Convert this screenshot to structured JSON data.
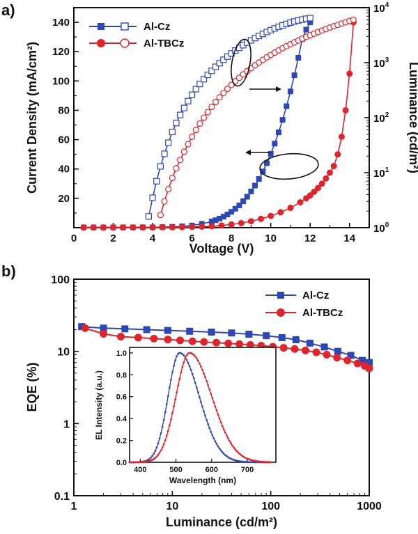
{
  "chart_data": [
    {
      "panel": "a)",
      "type": "line",
      "xlabel": "Voltage (V)",
      "ylabel_left": "Current Density (mA/cm²)",
      "ylabel_right": "Luminance (cd/m²)",
      "xlim": [
        0,
        15
      ],
      "ylim_left": [
        0,
        150
      ],
      "ylim_right": [
        1,
        10000
      ],
      "right_axis_scale": "log",
      "x_ticks": [
        "0",
        "2",
        "4",
        "6",
        "8",
        "10",
        "12",
        "14"
      ],
      "y_left_ticks": [
        "20",
        "40",
        "60",
        "80",
        "100",
        "120",
        "140"
      ],
      "y_right_ticks": [
        {
          "base": "10",
          "exp": "0"
        },
        {
          "base": "10",
          "exp": "1"
        },
        {
          "base": "10",
          "exp": "2"
        },
        {
          "base": "10",
          "exp": "3"
        },
        {
          "base": "10",
          "exp": "4"
        }
      ],
      "legend_position": "top-left",
      "series": [
        {
          "name": "Al-Cz",
          "kind": "current_density",
          "axis": "left",
          "marker": "filled-square",
          "color": "#2c47b8",
          "x": [
            0.5,
            1.0,
            1.5,
            2.0,
            2.5,
            3.0,
            3.5,
            4.0,
            4.5,
            5.0,
            5.5,
            6.0,
            6.5,
            7.0,
            7.2,
            7.4,
            7.6,
            7.8,
            8.0,
            8.2,
            8.4,
            8.6,
            8.8,
            9.0,
            9.2,
            9.4,
            9.6,
            9.8,
            10.0,
            10.2,
            10.4,
            10.6,
            10.8,
            11.0,
            11.2,
            11.4,
            11.6,
            11.8,
            12.0
          ],
          "y": [
            0.2,
            0.2,
            0.2,
            0.2,
            0.2,
            0.2,
            0.3,
            0.3,
            0.4,
            0.6,
            0.9,
            1.5,
            2.6,
            4.2,
            5.1,
            6.2,
            7.5,
            9.0,
            10.8,
            12.9,
            15.2,
            18.0,
            21.1,
            24.7,
            28.7,
            33.2,
            38.3,
            44.0,
            50.3,
            57.3,
            65.0,
            73.5,
            82.8,
            92.9,
            103.9,
            115.8,
            128.6,
            135.0,
            140.0
          ]
        },
        {
          "name": "Al-TBCz",
          "kind": "current_density",
          "axis": "left",
          "marker": "filled-circle",
          "color": "#e0242a",
          "x": [
            0.5,
            1.0,
            1.5,
            2.0,
            2.5,
            3.0,
            3.5,
            4.0,
            4.5,
            5.0,
            5.5,
            6.0,
            6.5,
            7.0,
            7.5,
            8.0,
            8.5,
            9.0,
            9.5,
            10.0,
            10.5,
            11.0,
            11.5,
            11.8,
            12.0,
            12.2,
            12.4,
            12.6,
            12.8,
            13.0,
            13.2,
            13.4,
            13.6,
            13.8,
            14.0,
            14.2
          ],
          "y": [
            0.2,
            0.2,
            0.2,
            0.2,
            0.2,
            0.2,
            0.2,
            0.2,
            0.3,
            0.3,
            0.4,
            0.5,
            0.7,
            1.0,
            1.5,
            2.2,
            3.1,
            4.4,
            6.0,
            8.0,
            10.5,
            13.5,
            17.3,
            20.0,
            22.0,
            24.5,
            27.0,
            30.0,
            33.5,
            37.5,
            42.0,
            50.0,
            62.0,
            80.0,
            105.0,
            140.0
          ]
        },
        {
          "name": "Al-Cz",
          "kind": "luminance",
          "axis": "right",
          "marker": "open-square",
          "color": "#2c47b8",
          "x": [
            3.8,
            4.0,
            4.2,
            4.4,
            4.6,
            4.8,
            5.0,
            5.2,
            5.4,
            5.6,
            5.8,
            6.0,
            6.2,
            6.4,
            6.6,
            6.8,
            7.0,
            7.2,
            7.4,
            7.6,
            7.8,
            8.0,
            8.2,
            8.4,
            8.6,
            8.8,
            9.0,
            9.2,
            9.4,
            9.6,
            9.8,
            10.0,
            10.2,
            10.4,
            10.6,
            10.8,
            11.0,
            11.2,
            11.4,
            11.6,
            11.8,
            12.0
          ],
          "y": [
            1.6,
            3.5,
            7.0,
            13,
            22,
            35,
            55,
            80,
            112,
            150,
            200,
            260,
            330,
            410,
            500,
            600,
            710,
            840,
            980,
            1130,
            1290,
            1470,
            1660,
            1860,
            2080,
            2310,
            2550,
            2800,
            3060,
            3330,
            3610,
            3900,
            4190,
            4480,
            4770,
            5060,
            5340,
            5610,
            5860,
            6090,
            6290,
            6460
          ]
        },
        {
          "name": "Al-TBCz",
          "kind": "luminance",
          "axis": "right",
          "marker": "open-circle",
          "color": "#e0242a",
          "x": [
            4.4,
            4.6,
            4.8,
            5.0,
            5.2,
            5.4,
            5.6,
            5.8,
            6.0,
            6.2,
            6.4,
            6.6,
            6.8,
            7.0,
            7.2,
            7.4,
            7.6,
            7.8,
            8.0,
            8.2,
            8.4,
            8.6,
            8.8,
            9.0,
            9.2,
            9.4,
            9.6,
            9.8,
            10.0,
            10.2,
            10.4,
            10.6,
            10.8,
            11.0,
            11.2,
            11.4,
            11.6,
            11.8,
            12.0,
            12.2,
            12.4,
            12.6,
            12.8,
            13.0,
            13.2,
            13.4,
            13.6,
            13.8,
            14.0,
            14.2
          ],
          "y": [
            1.7,
            3.0,
            5.0,
            8.0,
            12,
            17,
            24,
            33,
            45,
            60,
            78,
            100,
            126,
            157,
            193,
            234,
            281,
            334,
            394,
            460,
            533,
            613,
            700,
            795,
            897,
            1007,
            1125,
            1250,
            1383,
            1524,
            1673,
            1830,
            1995,
            2168,
            2349,
            2538,
            2735,
            2940,
            3153,
            3374,
            3603,
            3840,
            4085,
            4338,
            4599,
            4868,
            5145,
            5430,
            5723,
            6024
          ]
        }
      ],
      "annotations": [
        {
          "kind": "ellipse-with-arrow",
          "direction": "right",
          "points_to": "right-axis"
        },
        {
          "kind": "ellipse-with-arrow",
          "direction": "left",
          "points_to": "left-axis"
        }
      ]
    },
    {
      "panel": "b)",
      "type": "line",
      "xlabel": "Luminance (cd/m²)",
      "ylabel": "EQE (%)",
      "x_scale": "log",
      "y_scale": "log",
      "xlim": [
        1,
        1000
      ],
      "ylim": [
        0.1,
        100
      ],
      "x_ticks": [
        "1",
        "10",
        "100",
        "1000"
      ],
      "y_ticks": [
        "0.1",
        "1",
        "10",
        "100"
      ],
      "legend_position": "top-right",
      "series": [
        {
          "name": "Al-Cz",
          "marker": "filled-square",
          "color": "#2c47b8",
          "x": [
            1.2,
            2.0,
            3.3,
            5.5,
            9.0,
            15,
            25,
            40,
            60,
            90,
            130,
            180,
            250,
            350,
            480,
            650,
            850,
            1000
          ],
          "y": [
            22,
            21,
            20.5,
            20,
            19.5,
            19,
            18.5,
            18,
            17.3,
            16.5,
            15.5,
            14.5,
            13,
            11.5,
            10,
            8.8,
            7.5,
            7.0
          ]
        },
        {
          "name": "Al-TBCz",
          "marker": "filled-circle",
          "color": "#e0242a",
          "x": [
            1.3,
            2.0,
            3.0,
            4.5,
            6.5,
            9.0,
            12,
            16,
            21,
            28,
            37,
            48,
            62,
            80,
            105,
            135,
            175,
            225,
            290,
            370,
            470,
            600,
            760,
            900,
            1000
          ],
          "y": [
            21,
            17.5,
            16,
            15.5,
            15.0,
            14.6,
            14.2,
            13.8,
            13.5,
            13.2,
            12.9,
            12.6,
            12.3,
            12.0,
            11.6,
            11.2,
            10.8,
            10.3,
            9.7,
            9.0,
            8.2,
            7.5,
            6.8,
            6.3,
            5.8
          ]
        }
      ],
      "inset": {
        "type": "line",
        "xlabel": "Wavelength (nm)",
        "ylabel": "EL Intensity (a.u.)",
        "xlim": [
          370,
          780
        ],
        "ylim": [
          0,
          1.05
        ],
        "x_ticks": [
          "400",
          "500",
          "600",
          "700"
        ],
        "y_ticks": [
          "0.0",
          "0.2",
          "0.4",
          "0.6",
          "0.8",
          "1.0"
        ],
        "series": [
          {
            "name": "Al-Cz",
            "color": "#2c47b8",
            "peak_nm": 510,
            "sigma_left": 32,
            "sigma_right": 55
          },
          {
            "name": "Al-TBCz",
            "color": "#e0242a",
            "peak_nm": 538,
            "sigma_left": 38,
            "sigma_right": 62
          }
        ]
      }
    }
  ]
}
